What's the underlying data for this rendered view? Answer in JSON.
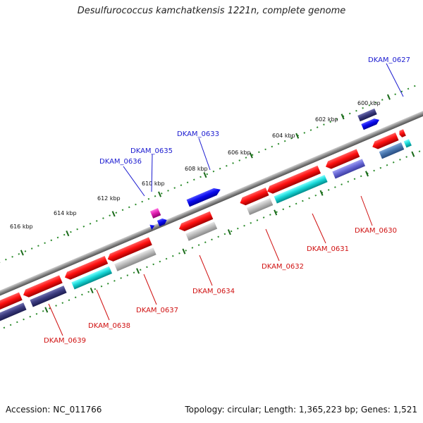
{
  "title": "Desulfurococcus kamchatkensis 1221n, complete genome",
  "footer": {
    "accession": "Accession: NC_011766",
    "summary": "Topology: circular; Length: 1,365,223 bp; Genes: 1,521"
  },
  "scale": {
    "ticks": [
      "600 kbp",
      "602 kbp",
      "604 kbp",
      "606 kbp",
      "608 kbp",
      "610 kbp",
      "612 kbp",
      "614 kbp",
      "616 kbp"
    ]
  },
  "genes_forward": [
    {
      "label": "DKAM_0627",
      "color": "#1a1ad0"
    },
    {
      "label": "DKAM_0633",
      "color": "#1a1ad0"
    },
    {
      "label": "DKAM_0635",
      "color": "#1a1ad0"
    },
    {
      "label": "DKAM_0636",
      "color": "#1a1ad0"
    }
  ],
  "genes_reverse": [
    {
      "label": "DKAM_0630",
      "color": "#d01010"
    },
    {
      "label": "DKAM_0631",
      "color": "#d01010"
    },
    {
      "label": "DKAM_0632",
      "color": "#d01010"
    },
    {
      "label": "DKAM_0634",
      "color": "#d01010"
    },
    {
      "label": "DKAM_0637",
      "color": "#d01010"
    },
    {
      "label": "DKAM_0638",
      "color": "#d01010"
    },
    {
      "label": "DKAM_0639",
      "color": "#d01010"
    }
  ]
}
